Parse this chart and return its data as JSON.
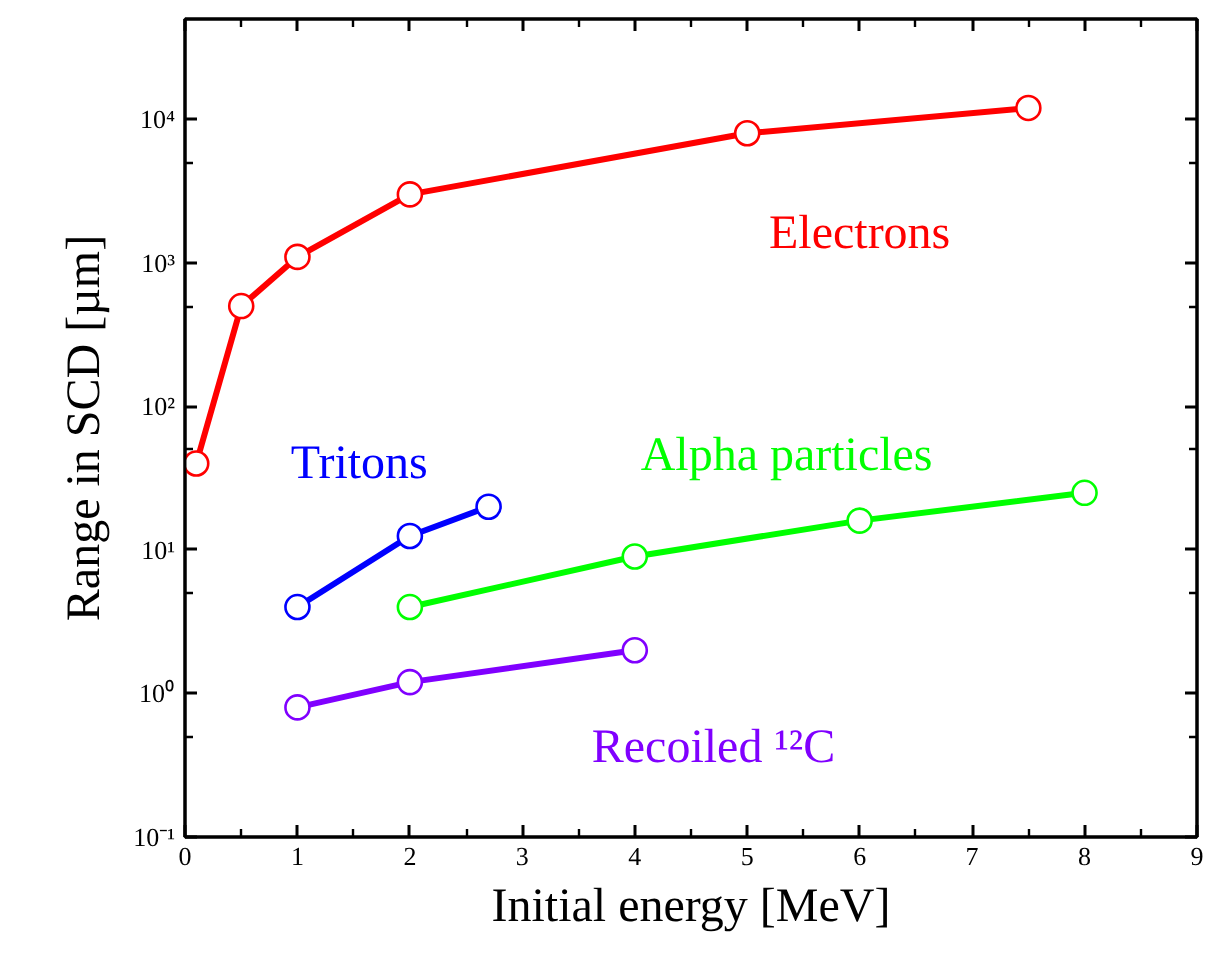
{
  "chart_data": {
    "type": "line",
    "xlabel": "Initial energy [MeV]",
    "ylabel": "Range in SCD [µm]",
    "log": "y",
    "marker": "circle",
    "grid": false,
    "xlim": [
      0,
      9
    ],
    "xticks": [
      0,
      {
        "value": 0.5,
        "label": null
      },
      1,
      {
        "value": 1.5,
        "label": null
      },
      2,
      {
        "value": 2.5,
        "label": null
      },
      3,
      {
        "value": 3.5,
        "label": null
      },
      4,
      {
        "value": 4.5,
        "label": null
      },
      5,
      {
        "value": 5.5,
        "label": null
      },
      6,
      {
        "value": 6.5,
        "label": null
      },
      7,
      {
        "value": 7.5,
        "label": null
      },
      8,
      {
        "value": 8.5,
        "label": null
      },
      9
    ],
    "ylim": [
      0.1,
      50000
    ],
    "yticks": [
      {
        "value": 0.1,
        "label": "10⁻¹"
      },
      {
        "value": 0.5,
        "label": null
      },
      {
        "value": 1,
        "label": "10⁰"
      },
      {
        "value": 5,
        "label": null
      },
      {
        "value": 10,
        "label": "10¹"
      },
      {
        "value": 50,
        "label": null
      },
      {
        "value": 100,
        "label": "10²"
      },
      {
        "value": 500,
        "label": null
      },
      {
        "value": 1000,
        "label": "10³"
      },
      {
        "value": 5000,
        "label": null
      },
      {
        "value": 10000,
        "label": "10⁴"
      }
    ],
    "series": [
      {
        "name": "Electrons",
        "color": "#ff0000",
        "x": [
          0.1,
          0.5,
          1,
          2,
          5,
          7.5
        ],
        "values": [
          40,
          500,
          1100,
          3000,
          8000,
          12000
        ]
      },
      {
        "name": "Tritons",
        "color": "#0000ff",
        "x": [
          1,
          2,
          2.7
        ],
        "values": [
          4,
          12.5,
          20
        ]
      },
      {
        "name": "Alpha particles",
        "color": "#00ff00",
        "x": [
          2,
          4,
          6,
          8
        ],
        "values": [
          4,
          9,
          16,
          25
        ]
      },
      {
        "name": "Recoiled ¹²C",
        "color": "#8000ff",
        "x": [
          1,
          2,
          4
        ],
        "values": [
          0.8,
          1.2,
          2
        ]
      }
    ]
  }
}
